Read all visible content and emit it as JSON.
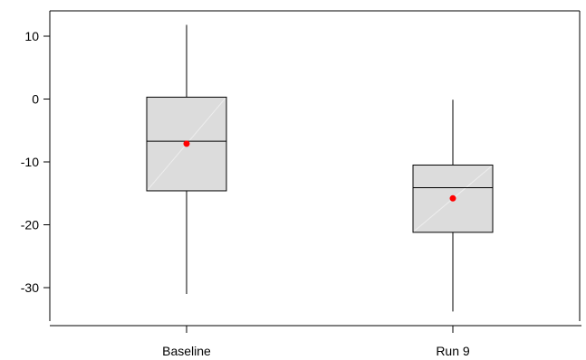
{
  "chart_data": {
    "type": "boxplot",
    "title": "",
    "xlabel": "",
    "ylabel": "",
    "ylim": [
      -36,
      14
    ],
    "yticks": [
      10,
      0,
      -10,
      -20,
      -30
    ],
    "ytick_labels": [
      "10",
      "0",
      "-10",
      "-20",
      "-30"
    ],
    "categories": [
      "Baseline",
      "Run 9"
    ],
    "boxes": [
      {
        "category": "Baseline",
        "whisker_low": -31.0,
        "q1": -14.6,
        "median": -6.7,
        "q3": 0.3,
        "whisker_high": 11.8,
        "mean": -7.1
      },
      {
        "category": "Run 9",
        "whisker_low": -33.8,
        "q1": -21.2,
        "median": -14.1,
        "q3": -10.5,
        "whisker_high": -0.1,
        "mean": -15.8
      }
    ],
    "colors": {
      "box_fill": "#dcdcdc",
      "box_stroke": "#000000",
      "mean_marker": "#ff0000"
    }
  }
}
